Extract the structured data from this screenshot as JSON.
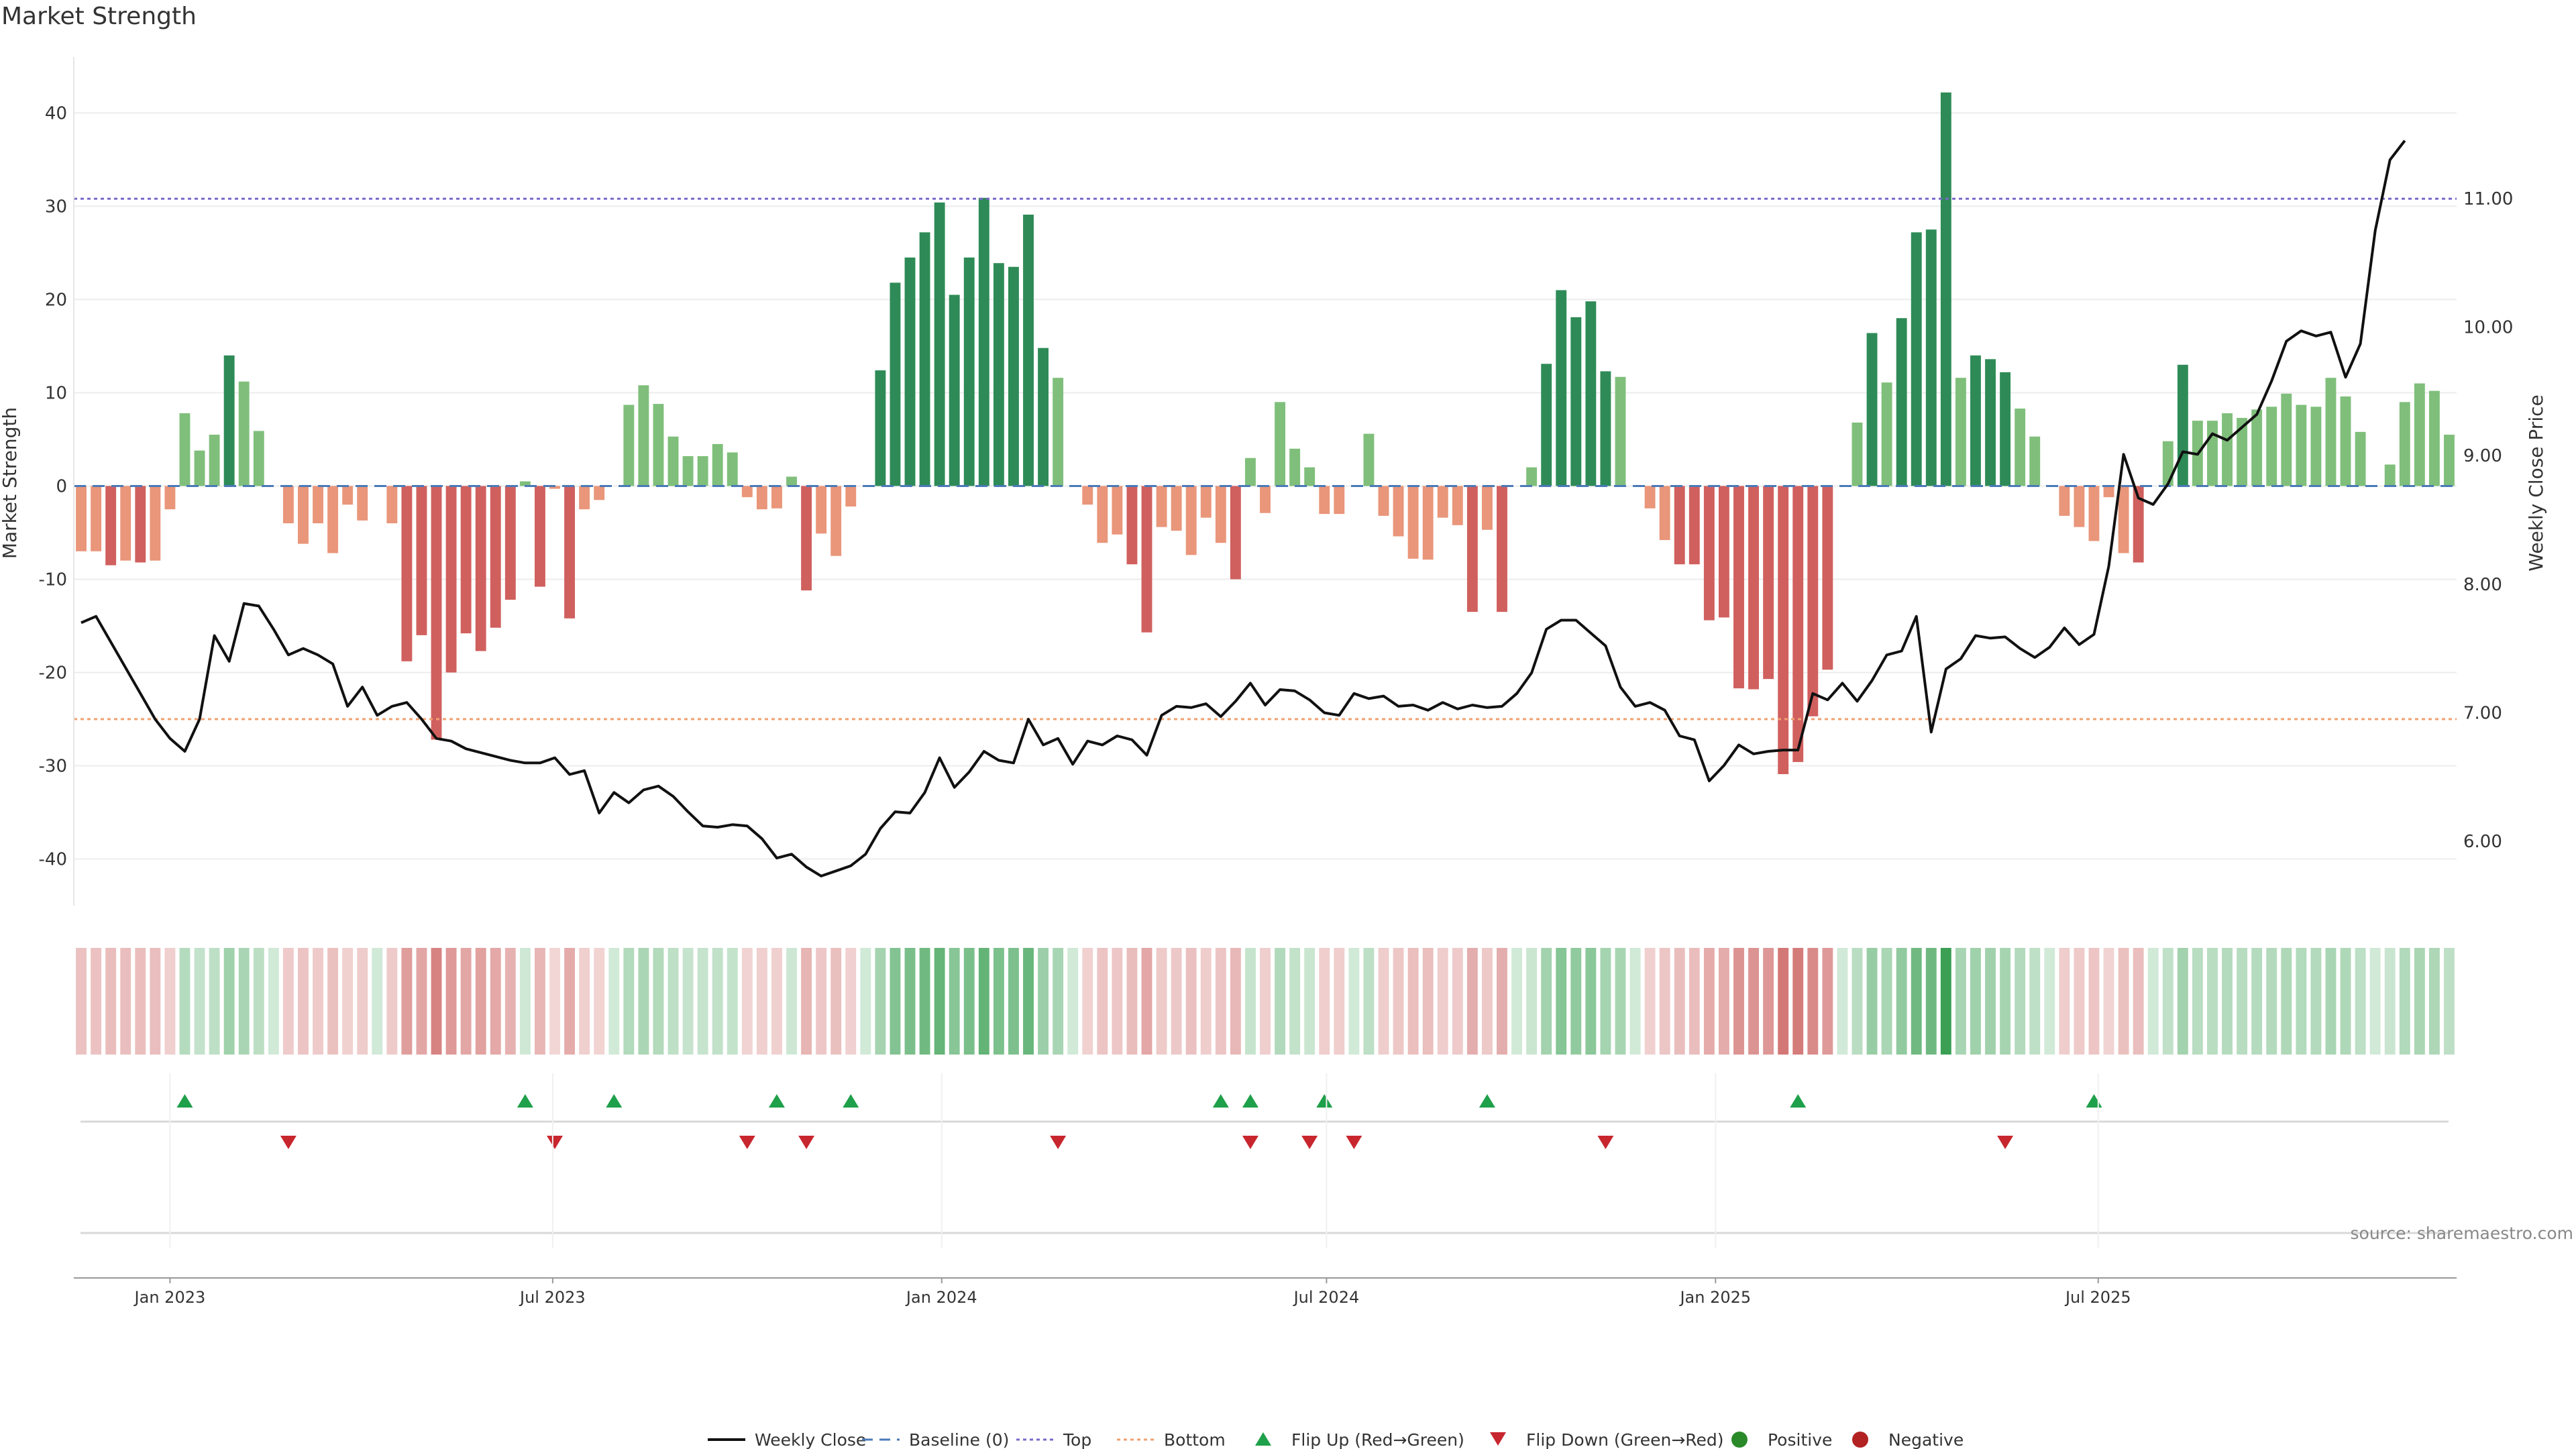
{
  "title": "Market Strength",
  "source": "source: sharemaestro.com",
  "colors": {
    "pos_strong": "#2e8b57",
    "pos_weak": "#7fbf7b",
    "neg_strong": "#d0605e",
    "neg_weak": "#e9967a",
    "price_line": "#111111",
    "top_line": "#7b68c8",
    "bottom_line": "#f0a070",
    "baseline": "#4a7ab8",
    "flip_up": "#1fa04a",
    "flip_down": "#c8262e",
    "positive_dot": "#2a8a2a",
    "negative_dot": "#b22222"
  },
  "legend": [
    {
      "key": "line",
      "label": "Weekly Close"
    },
    {
      "key": "baseline",
      "label": "Baseline (0)"
    },
    {
      "key": "top",
      "label": "Top"
    },
    {
      "key": "bottom",
      "label": "Bottom"
    },
    {
      "key": "flip_up",
      "label": "Flip Up (Red→Green)"
    },
    {
      "key": "flip_down",
      "label": "Flip Down (Green→Red)"
    },
    {
      "key": "positive",
      "label": "Positive"
    },
    {
      "key": "negative",
      "label": "Negative"
    }
  ],
  "chart_data": {
    "type": "bar",
    "ylabel": "Market Strength",
    "y2label": "Weekly Close Price",
    "ylim": [
      -45,
      46
    ],
    "yticks": [
      -40,
      -30,
      -20,
      -10,
      0,
      10,
      20,
      30,
      40
    ],
    "y2lim": [
      5.5,
      12.1
    ],
    "y2ticks": [
      "6.00",
      "7.00",
      "8.00",
      "9.00",
      "10.00",
      "11.00"
    ],
    "top_level": 30.8,
    "bottom_level": -25,
    "start_date": "2022-11-20",
    "xticks": [
      {
        "date": "2023-01-01",
        "label": "Jan 2023"
      },
      {
        "date": "2023-07-01",
        "label": "Jul 2023"
      },
      {
        "date": "2024-01-01",
        "label": "Jan 2024"
      },
      {
        "date": "2024-07-01",
        "label": "Jul 2024"
      },
      {
        "date": "2025-01-01",
        "label": "Jan 2025"
      },
      {
        "date": "2025-07-01",
        "label": "Jul 2025"
      }
    ],
    "strength": [
      -7,
      -7,
      -8.5,
      -8,
      -8.2,
      -8,
      -2.5,
      7.8,
      3.8,
      5.5,
      14,
      11.2,
      5.9,
      0,
      -4,
      -6.2,
      -4,
      -7.2,
      -2,
      -3.7,
      0,
      -4,
      -18.8,
      -16,
      -27.2,
      -20,
      -15.8,
      -17.7,
      -15.2,
      -12.2,
      0.5,
      -10.8,
      -0.3,
      -14.2,
      -2.5,
      -1.5,
      0,
      8.7,
      10.8,
      8.8,
      5.3,
      3.2,
      3.2,
      4.5,
      3.6,
      -1.2,
      -2.5,
      -2.4,
      1,
      -11.2,
      -5.1,
      -7.5,
      -2.2,
      0,
      12.4,
      21.8,
      24.5,
      27.2,
      30.4,
      20.5,
      24.5,
      30.9,
      23.9,
      23.5,
      29.1,
      14.8,
      11.6,
      0,
      -2,
      -6.1,
      -5.2,
      -8.4,
      -15.7,
      -4.4,
      -4.8,
      -7.4,
      -3.4,
      -6.1,
      -10,
      3,
      -2.9,
      9,
      4,
      2,
      -3,
      -3,
      0,
      5.6,
      -3.2,
      -5.4,
      -7.8,
      -7.9,
      -3.4,
      -4.2,
      -13.5,
      -4.7,
      -13.5,
      0,
      2,
      13.1,
      21,
      18.1,
      19.8,
      12.3,
      11.7,
      0,
      -2.4,
      -5.8,
      -8.4,
      -8.4,
      -14.4,
      -14.1,
      -21.7,
      -21.8,
      -20.7,
      -30.9,
      -29.6,
      -24.7,
      -19.7,
      0,
      6.8,
      16.4,
      11.1,
      18,
      27.2,
      27.5,
      42.2,
      11.6,
      14,
      13.6,
      12.2,
      8.3,
      5.3,
      0,
      -3.2,
      -4.4,
      -5.9,
      -1.2,
      -7.2,
      -8.2,
      0,
      4.8,
      13,
      7,
      7,
      7.8,
      7.3,
      8.2,
      8.5,
      9.9,
      8.7,
      8.5,
      11.6,
      9.6,
      5.8,
      0,
      2.3,
      9,
      11,
      10.2,
      5.5
    ],
    "weekly_close": [
      7.7,
      7.75,
      7.55,
      7.35,
      7.15,
      6.95,
      6.8,
      6.7,
      6.95,
      7.6,
      7.4,
      7.85,
      7.83,
      7.65,
      7.45,
      7.5,
      7.45,
      7.38,
      7.05,
      7.2,
      6.98,
      7.05,
      7.08,
      6.95,
      6.8,
      6.78,
      6.72,
      6.69,
      6.66,
      6.63,
      6.61,
      6.61,
      6.65,
      6.52,
      6.55,
      6.22,
      6.38,
      6.3,
      6.4,
      6.43,
      6.35,
      6.23,
      6.12,
      6.11,
      6.13,
      6.12,
      6.02,
      5.87,
      5.9,
      5.8,
      5.73,
      5.77,
      5.81,
      5.9,
      6.1,
      6.23,
      6.22,
      6.38,
      6.65,
      6.42,
      6.54,
      6.7,
      6.63,
      6.61,
      6.95,
      6.75,
      6.8,
      6.6,
      6.78,
      6.75,
      6.82,
      6.79,
      6.67,
      6.98,
      7.05,
      7.04,
      7.07,
      6.97,
      7.09,
      7.23,
      7.06,
      7.18,
      7.17,
      7.1,
      7.0,
      6.98,
      7.15,
      7.11,
      7.13,
      7.05,
      7.06,
      7.02,
      7.08,
      7.03,
      7.06,
      7.04,
      7.05,
      7.15,
      7.31,
      7.65,
      7.72,
      7.72,
      7.62,
      7.52,
      7.2,
      7.05,
      7.08,
      7.02,
      6.82,
      6.79,
      6.47,
      6.59,
      6.75,
      6.68,
      6.7,
      6.71,
      6.71,
      7.15,
      7.1,
      7.23,
      7.09,
      7.25,
      7.45,
      7.48,
      7.75,
      6.85,
      7.34,
      7.42,
      7.6,
      7.58,
      7.59,
      7.5,
      7.43,
      7.51,
      7.66,
      7.53,
      7.61,
      8.14,
      9.01,
      8.67,
      8.62,
      8.78,
      9.03,
      9.01,
      9.17,
      9.12,
      9.22,
      9.32,
      9.58,
      9.89,
      9.97,
      9.93,
      9.96,
      9.61,
      9.87,
      10.75,
      11.3,
      11.45
    ],
    "flip_up_weeks": [
      7,
      30,
      36,
      47,
      52,
      77,
      79,
      84,
      95,
      116,
      136
    ],
    "flip_down_weeks": [
      14,
      32,
      45,
      49,
      66,
      79,
      83,
      86,
      103,
      130
    ]
  }
}
